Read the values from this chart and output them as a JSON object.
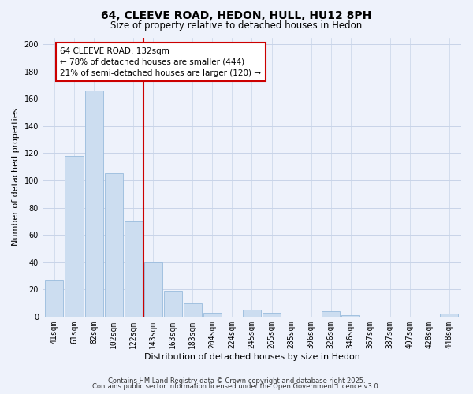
{
  "title": "64, CLEEVE ROAD, HEDON, HULL, HU12 8PH",
  "subtitle": "Size of property relative to detached houses in Hedon",
  "xlabel": "Distribution of detached houses by size in Hedon",
  "ylabel": "Number of detached properties",
  "categories": [
    "41sqm",
    "61sqm",
    "82sqm",
    "102sqm",
    "122sqm",
    "143sqm",
    "163sqm",
    "183sqm",
    "204sqm",
    "224sqm",
    "245sqm",
    "265sqm",
    "285sqm",
    "306sqm",
    "326sqm",
    "346sqm",
    "367sqm",
    "387sqm",
    "407sqm",
    "428sqm",
    "448sqm"
  ],
  "values": [
    27,
    118,
    166,
    105,
    70,
    40,
    19,
    10,
    3,
    0,
    5,
    3,
    0,
    0,
    4,
    1,
    0,
    0,
    0,
    0,
    2
  ],
  "bar_color": "#ccddf0",
  "bar_edge_color": "#99bbdd",
  "vline_x_index": 4.5,
  "annotation_title": "64 CLEEVE ROAD: 132sqm",
  "annotation_line1": "← 78% of detached houses are smaller (444)",
  "annotation_line2": "21% of semi-detached houses are larger (120) →",
  "ylim": [
    0,
    205
  ],
  "yticks": [
    0,
    20,
    40,
    60,
    80,
    100,
    120,
    140,
    160,
    180,
    200
  ],
  "footer1": "Contains HM Land Registry data © Crown copyright and database right 2025.",
  "footer2": "Contains public sector information licensed under the Open Government Licence v3.0.",
  "background_color": "#eef2fb",
  "plot_background": "#eef2fb",
  "grid_color": "#c8d4e8",
  "vline_color": "#cc0000",
  "annotation_box_color": "#ffffff",
  "annotation_box_edge": "#cc0000",
  "title_fontsize": 10,
  "subtitle_fontsize": 8.5,
  "tick_fontsize": 7,
  "axis_label_fontsize": 8,
  "footer_fontsize": 6
}
